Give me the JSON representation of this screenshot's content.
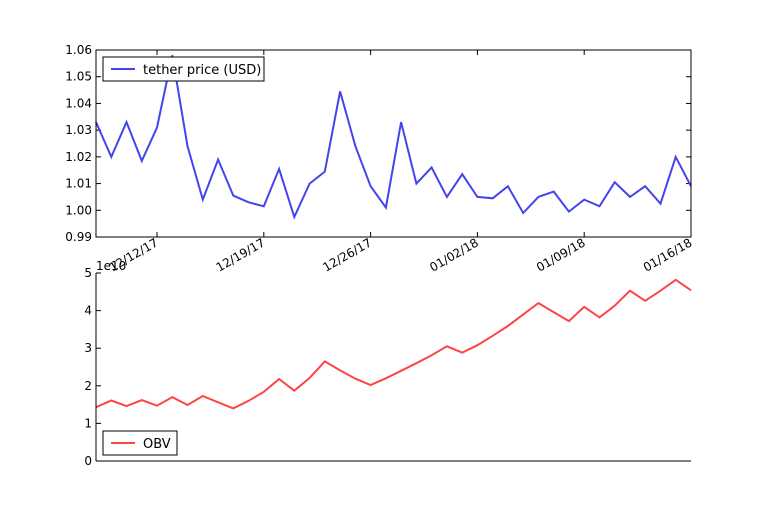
{
  "chart_data": [
    {
      "type": "line",
      "series": [
        {
          "name": "tether price (USD)",
          "color": "#4444ee",
          "x": [
            0,
            1,
            2,
            3,
            4,
            5,
            6,
            7,
            8,
            9,
            10,
            11,
            12,
            13,
            14,
            15,
            16,
            17,
            18,
            19,
            20,
            21,
            22,
            23,
            24,
            25,
            26,
            27,
            28,
            29,
            30,
            31,
            32,
            33,
            34,
            35,
            36,
            37,
            38,
            39
          ],
          "values": [
            1.033,
            1.02,
            1.033,
            1.0185,
            1.031,
            1.058,
            1.024,
            1.004,
            1.019,
            1.0055,
            1.003,
            1.0015,
            1.0155,
            0.9975,
            1.01,
            1.0145,
            1.0445,
            1.024,
            1.009,
            1.001,
            1.033,
            1.01,
            1.016,
            1.005,
            1.0135,
            1.005,
            1.0045,
            1.009,
            0.999,
            1.005,
            1.007,
            0.9995,
            1.004,
            1.0015,
            1.0105,
            1.005,
            1.009,
            1.0025,
            1.02,
            1.009
          ]
        }
      ],
      "ylim": [
        0.99,
        1.06
      ],
      "yticks": [
        0.99,
        1.0,
        1.01,
        1.02,
        1.03,
        1.04,
        1.05,
        1.06
      ],
      "ytick_labels": [
        "0.99",
        "1.00",
        "1.01",
        "1.02",
        "1.03",
        "1.04",
        "1.05",
        "1.06"
      ],
      "xticks": [
        {
          "x": 4,
          "label": "12/12/17"
        },
        {
          "x": 11,
          "label": "12/19/17"
        },
        {
          "x": 18,
          "label": "12/26/17"
        },
        {
          "x": 25,
          "label": "01/02/18"
        },
        {
          "x": 32,
          "label": "01/09/18"
        },
        {
          "x": 39,
          "label": "01/16/18"
        }
      ],
      "xlim": [
        0,
        39
      ],
      "grid": false,
      "legend": "upper-left"
    },
    {
      "type": "line",
      "series": [
        {
          "name": "OBV",
          "color": "#ff4444",
          "x": [
            0,
            1,
            2,
            3,
            4,
            5,
            6,
            7,
            8,
            9,
            10,
            11,
            12,
            13,
            14,
            15,
            16,
            17,
            18,
            19,
            20,
            21,
            22,
            23,
            24,
            25,
            26,
            27,
            28,
            29,
            30,
            31,
            32,
            33,
            34,
            35,
            36,
            37,
            38,
            39
          ],
          "values": [
            1.43,
            1.61,
            1.46,
            1.62,
            1.47,
            1.7,
            1.49,
            1.73,
            1.56,
            1.4,
            1.6,
            1.84,
            2.18,
            1.87,
            2.21,
            2.65,
            2.41,
            2.19,
            2.02,
            2.2,
            2.4,
            2.6,
            2.81,
            3.05,
            2.88,
            3.08,
            3.33,
            3.59,
            3.9,
            4.2,
            3.96,
            3.72,
            4.1,
            3.82,
            4.13,
            4.53,
            4.26,
            4.53,
            4.82,
            4.54
          ]
        }
      ],
      "scale_label": "1e10",
      "ylim": [
        0,
        5
      ],
      "yticks": [
        0,
        1,
        2,
        3,
        4,
        5
      ],
      "ytick_labels": [
        "0",
        "1",
        "2",
        "3",
        "4",
        "5"
      ],
      "xlim": [
        0,
        39
      ],
      "grid": false,
      "legend": "lower-left"
    }
  ]
}
